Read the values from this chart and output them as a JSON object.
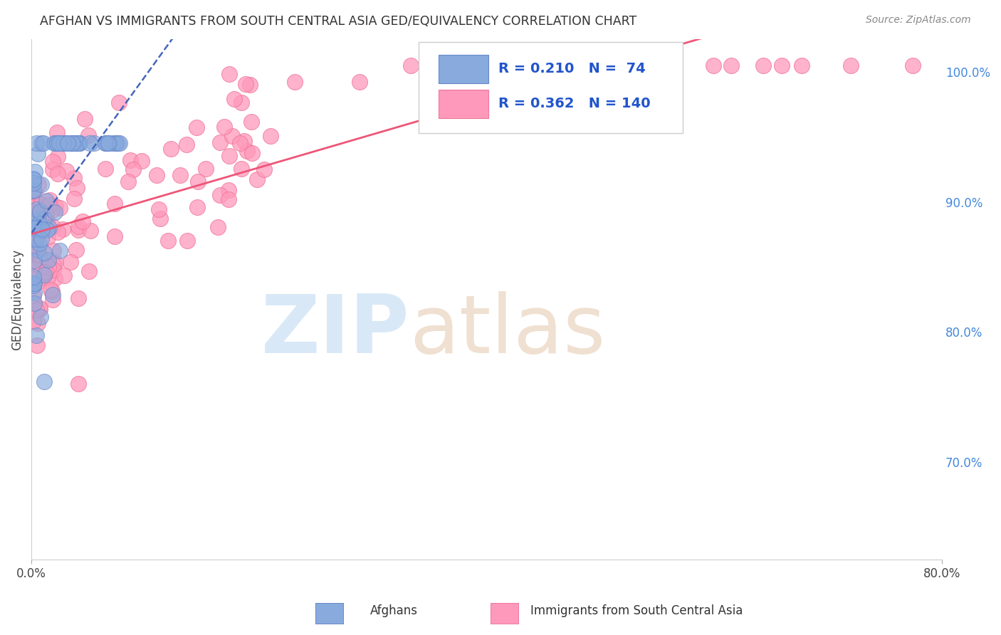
{
  "title": "AFGHAN VS IMMIGRANTS FROM SOUTH CENTRAL ASIA GED/EQUIVALENCY CORRELATION CHART",
  "source": "Source: ZipAtlas.com",
  "ylabel": "GED/Equivalency",
  "xmin": 0.0,
  "xmax": 0.8,
  "ymin": 0.625,
  "ymax": 1.025,
  "ytick_values": [
    0.7,
    0.8,
    0.9,
    1.0
  ],
  "ytick_labels": [
    "70.0%",
    "80.0%",
    "90.0%",
    "100.0%"
  ],
  "xtick_values": [
    0.0,
    0.8
  ],
  "xtick_labels": [
    "0.0%",
    "80.0%"
  ],
  "afghan_R": 0.21,
  "afghan_N": 74,
  "sca_R": 0.362,
  "sca_N": 140,
  "afghan_color": "#88AADD",
  "sca_color": "#FF99BB",
  "afghan_edge": "#6688CC",
  "sca_edge": "#EE7799",
  "afghan_trend_color": "#4466BB",
  "sca_trend_color": "#EE5577",
  "legend_label_afghan": "Afghans",
  "legend_label_sca": "Immigrants from South Central Asia",
  "watermark_zi_color": "#AACCEE",
  "watermark_atlas_color": "#DDBB99",
  "background_color": "#FFFFFF",
  "grid_color": "#DDDDDD",
  "title_color": "#333333",
  "source_color": "#888888",
  "right_tick_color": "#4488DD",
  "legend_text_color": "#2255CC"
}
